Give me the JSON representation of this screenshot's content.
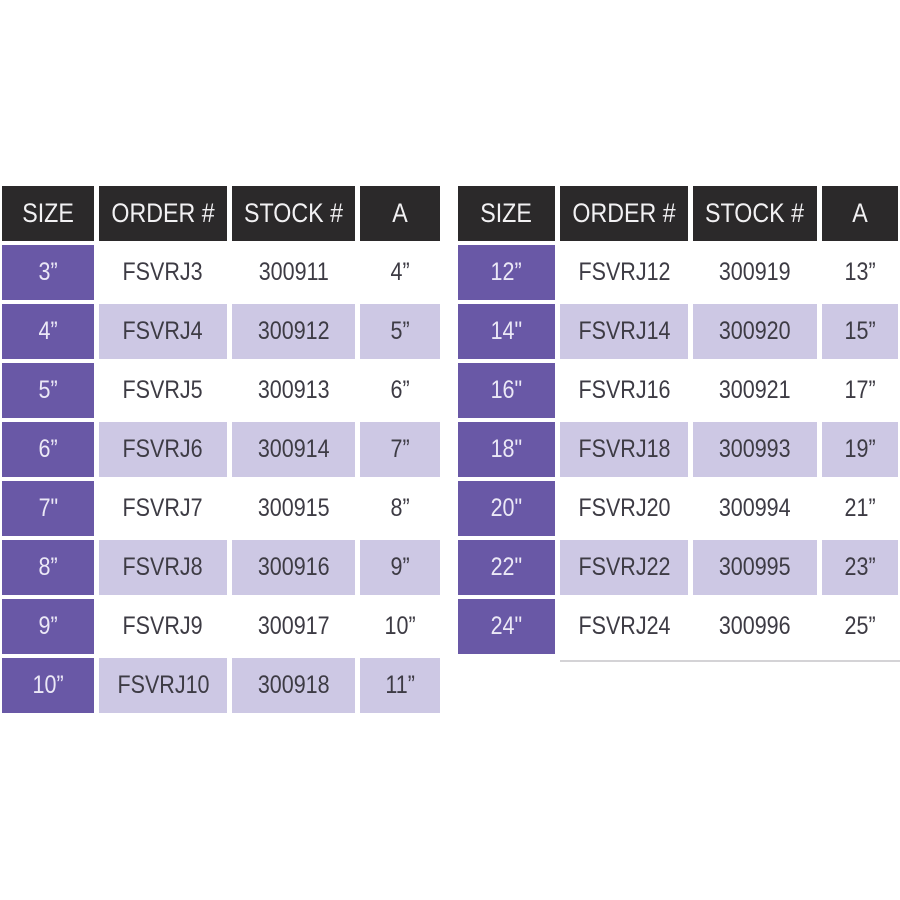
{
  "colors": {
    "header-bg": "#2b292a",
    "purple": "#6958a6",
    "lavender": "#cdc8e4",
    "ink": "#3d3b44",
    "size-ink": "#ebe8f6",
    "header-ink": "#f2f1f3",
    "rule": "#d4d3d6"
  },
  "tables": [
    {
      "id": "left",
      "columns": [
        "SIZE",
        "ORDER #",
        "STOCK #",
        "A"
      ],
      "rows": [
        [
          "3”",
          "FSVRJ3",
          "300911",
          "4”"
        ],
        [
          "4”",
          "FSVRJ4",
          "300912",
          "5”"
        ],
        [
          "5”",
          "FSVRJ5",
          "300913",
          "6”"
        ],
        [
          "6”",
          "FSVRJ6",
          "300914",
          "7”"
        ],
        [
          "7\"",
          "FSVRJ7",
          "300915",
          "8”"
        ],
        [
          "8”",
          "FSVRJ8",
          "300916",
          "9”"
        ],
        [
          "9”",
          "FSVRJ9",
          "300917",
          "10”"
        ],
        [
          "10”",
          "FSVRJ10",
          "300918",
          "11”"
        ]
      ]
    },
    {
      "id": "right",
      "columns": [
        "SIZE",
        "ORDER #",
        "STOCK #",
        "A"
      ],
      "rows": [
        [
          "12”",
          "FSVRJ12",
          "300919",
          "13”"
        ],
        [
          "14\"",
          "FSVRJ14",
          "300920",
          "15”"
        ],
        [
          "16\"",
          "FSVRJ16",
          "300921",
          "17”"
        ],
        [
          "18\"",
          "FSVRJ18",
          "300993",
          "19”"
        ],
        [
          "20\"",
          "FSVRJ20",
          "300994",
          "21”"
        ],
        [
          "22\"",
          "FSVRJ22",
          "300995",
          "23”"
        ],
        [
          "24\"",
          "FSVRJ24",
          "300996",
          "25”"
        ]
      ]
    }
  ]
}
